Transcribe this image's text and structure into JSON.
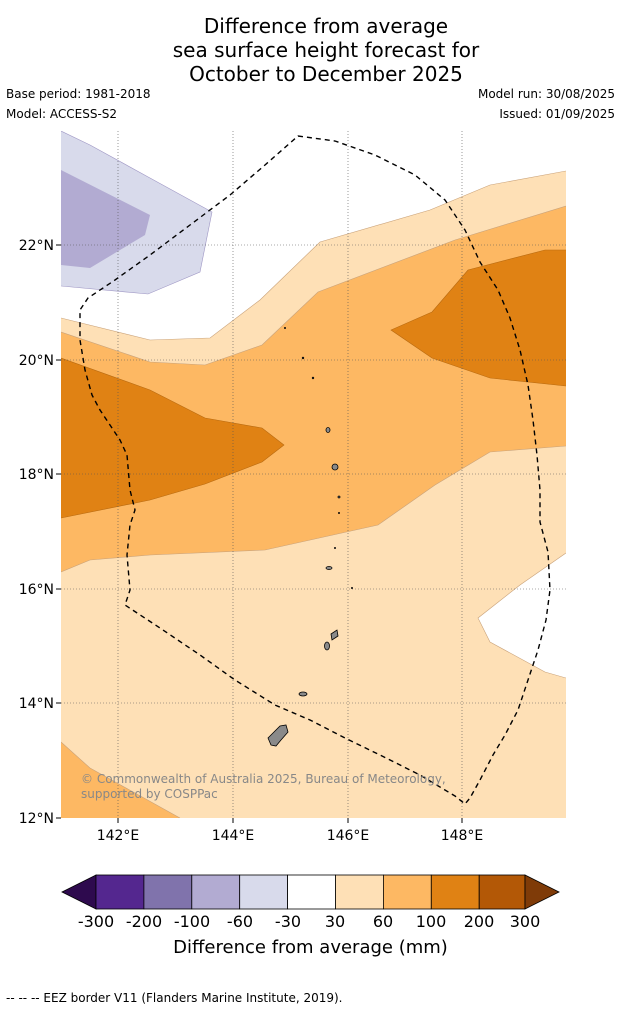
{
  "title": {
    "line1": "Difference from average",
    "line2": "sea surface height forecast for",
    "line3": "October to December 2025"
  },
  "meta": {
    "base_period": "Base period: 1981-2018",
    "model": "Model: ACCESS-S2",
    "model_run": "Model run: 30/08/2025",
    "issued": "Issued: 01/09/2025"
  },
  "map": {
    "lon_range": [
      141,
      149.8
    ],
    "lat_range": [
      12,
      23.9
    ],
    "lon_ticks": [
      "142°E",
      "144°E",
      "146°E",
      "148°E"
    ],
    "lat_ticks": [
      "12°N",
      "14°N",
      "16°N",
      "18°N",
      "20°N",
      "22°N"
    ],
    "grid": true,
    "copyright": "© Commonwealth of Australia 2025, Bureau of Meteorology, supported by COSPPac"
  },
  "colorbar": {
    "labels": [
      "-300",
      "-200",
      "-100",
      "-60",
      "-30",
      "30",
      "60",
      "100",
      "200",
      "300"
    ],
    "colors": [
      "#2e0a4e",
      "#54278f",
      "#8073ac",
      "#b2abd2",
      "#d8daeb",
      "#ffffff",
      "#fee0b6",
      "#fdb863",
      "#e08214",
      "#b35806",
      "#7f3b08"
    ],
    "title": "Difference from average (mm)"
  },
  "legend": {
    "eez": "--  --  -- EEZ border V11 (Flanders Marine Institute, 2019)."
  }
}
